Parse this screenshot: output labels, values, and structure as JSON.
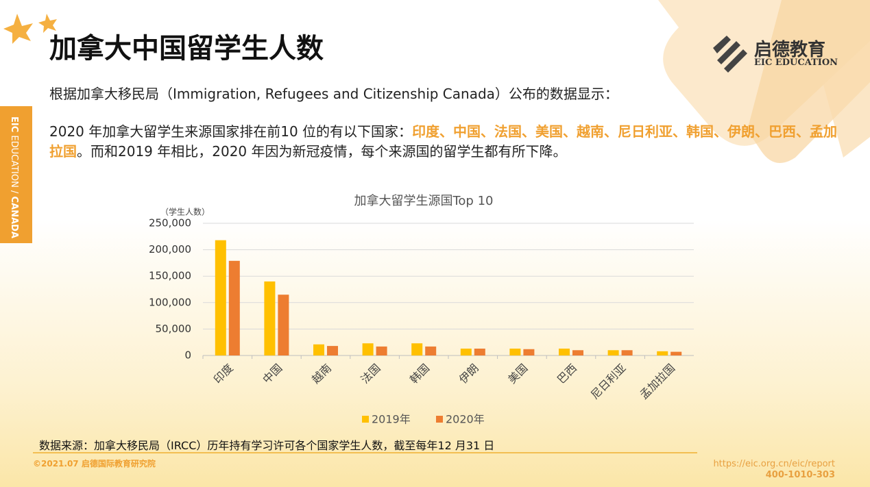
{
  "header": {
    "title": "加拿大中国留学生人数",
    "logo_name": "启德教育",
    "logo_sub": "EIC EDUCATION"
  },
  "side_tab": {
    "brand": "EIC",
    "education": "EDUCATION /",
    "region": "CANADA"
  },
  "body": {
    "paragraph_1": "根据加拿大移民局（Immigration, Refugees and Citizenship Canada）公布的数据显示：",
    "paragraph_2": {
      "lead": "2020 年加拿大留学生来源国家排在前10 位的有以下国家：",
      "highlight": "印度、中国、法国、美国、越南、尼日利亚、韩国、伊朗、巴西、孟加拉国",
      "tail": "。而和2019 年相比，2020 年因为新冠疫情，每个来源国的留学生都有所下降。"
    }
  },
  "chart_data": {
    "type": "bar",
    "title": "加拿大留学生源国Top 10",
    "y_label": "（学生人数）",
    "categories": [
      "印度",
      "中国",
      "越南",
      "法国",
      "韩国",
      "伊朗",
      "美国",
      "巴西",
      "尼日利亚",
      "孟加拉国"
    ],
    "series": [
      {
        "name": "2019年",
        "color": "#ffc000",
        "values": [
          218000,
          140000,
          21000,
          23000,
          23000,
          13000,
          13000,
          13000,
          10000,
          8000
        ]
      },
      {
        "name": "2020年",
        "color": "#ed7d31",
        "values": [
          179000,
          115000,
          18000,
          17000,
          17000,
          13000,
          12000,
          10000,
          10000,
          7000
        ]
      }
    ],
    "ylim": [
      0,
      250000
    ],
    "yticks": [
      0,
      {
        "value": 50000,
        "label": "50,000"
      },
      {
        "value": 100000,
        "label": "100,000"
      },
      {
        "value": 150000,
        "label": "150,000"
      },
      {
        "value": 200000,
        "label": "200,000"
      },
      {
        "value": 250000,
        "label": "250,000"
      }
    ],
    "grid": true,
    "legend": "bottom"
  },
  "footer": {
    "source": "数据来源：加拿大移民局（IRCC）历年持有学习许可各个国家学生人数，截至每年12 月31 日",
    "copyright": "©2021.07 启德国际教育研究院",
    "url": "https://eic.org.cn/eic/report",
    "phone": "400-1010-303"
  }
}
